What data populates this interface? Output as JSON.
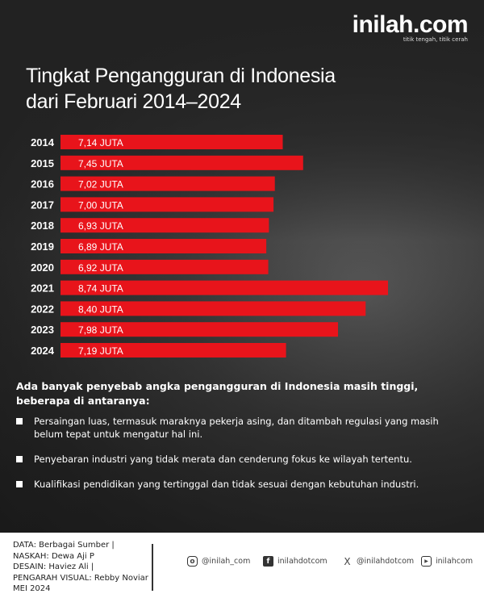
{
  "brand": {
    "name": "inilah.com",
    "tagline": "titik tengah, titik cerah"
  },
  "title_lines": [
    "Tingkat Pengangguran di Indonesia",
    "dari Februari 2014–2024"
  ],
  "chart_data": {
    "type": "bar",
    "orientation": "horizontal",
    "categories": [
      "2014",
      "2015",
      "2016",
      "2017",
      "2018",
      "2019",
      "2020",
      "2021",
      "2022",
      "2023",
      "2024"
    ],
    "values": [
      7.14,
      7.45,
      7.02,
      7.0,
      6.93,
      6.89,
      6.92,
      8.74,
      8.4,
      7.98,
      7.19
    ],
    "labels": [
      "7,14 JUTA",
      "7,45 JUTA",
      "7,02 JUTA",
      "7,00 JUTA",
      "6,93 JUTA",
      "6,89 JUTA",
      "6,92 JUTA",
      "8,74 JUTA",
      "8,40 JUTA",
      "7,98 JUTA",
      "7,19 JUTA"
    ],
    "unit": "JUTA",
    "bar_color": "#e8141b"
  },
  "intro": "Ada banyak penyebab angka pengangguran di Indonesia masih tinggi, beberapa di antaranya:",
  "points": [
    "Persaingan luas, termasuk maraknya pekerja asing, dan ditambah regulasi yang masih belum tepat untuk mengatur hal ini.",
    "Penyebaran industri yang tidak merata dan cenderung fokus ke wilayah tertentu.",
    "Kualifikasi pendidikan yang tertinggal dan tidak sesuai dengan kebutuhan industri."
  ],
  "credits": [
    "DATA: Berbagai Sumber |",
    "NASKAH:  Dewa Aji P",
    "DESAIN: Haviez Ali |",
    "PENGARAH VISUAL: Rebby Noviar",
    "MEI 2024"
  ],
  "social": [
    {
      "icon": "instagram-icon",
      "handle": "@inilah_com"
    },
    {
      "icon": "facebook-icon",
      "handle": "inilahdotcom"
    },
    {
      "icon": "x-icon",
      "handle": "@inilahdotcom"
    },
    {
      "icon": "youtube-icon",
      "handle": "inilahcom"
    }
  ]
}
